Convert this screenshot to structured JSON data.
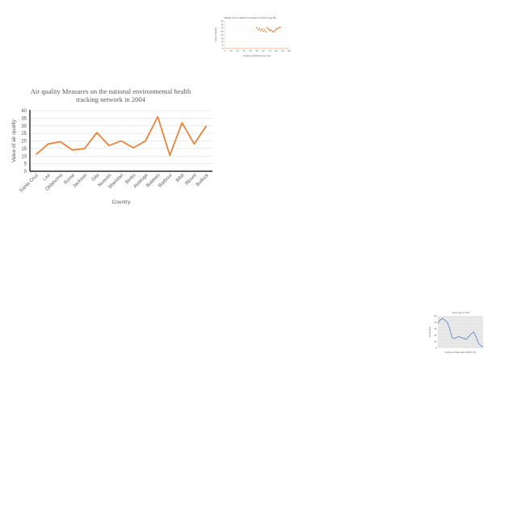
{
  "chart_data": [
    {
      "type": "line",
      "title": "Air quality Measures on the national environmental health tracking network in 2004",
      "title_lines": [
        "Air quality Measures on the national environmental health",
        "tracking network in 2004"
      ],
      "xlabel": "Country",
      "ylabel": "Value of air quality",
      "categories": [
        "Santa Cruz",
        "Lee",
        "Oklahoma",
        "Rome",
        "Jackson",
        "Gila",
        "Nueces",
        "Sheridan",
        "Berks",
        "Autauga",
        "Baldwin",
        "Barbour",
        "Bibb",
        "Blount",
        "Bullock"
      ],
      "values": [
        11,
        18,
        19.5,
        14,
        15,
        25.5,
        17,
        20,
        15.5,
        20,
        36,
        10.5,
        32,
        18,
        30
      ],
      "ylim": [
        0,
        40
      ],
      "yticks": [
        0,
        5,
        10,
        15,
        20,
        25,
        30,
        35,
        40
      ],
      "grid": true,
      "color": "#ED7D31"
    },
    {
      "type": "scatter",
      "title": "Weekly count of Deaths to Diseases in 2014 for age 85+",
      "xlabel": "Number of Deaths in the Year",
      "ylabel": "Count of deaths",
      "xlim": [
        0,
        100
      ],
      "ylim": [
        0,
        40
      ],
      "xticks": [
        0,
        10,
        20,
        30,
        40,
        50,
        60,
        70,
        80,
        90,
        100
      ],
      "yticks": [
        0,
        5,
        10,
        15,
        20,
        25,
        30,
        35,
        40
      ],
      "x": [
        50,
        52,
        54,
        56,
        58,
        60,
        62,
        64,
        66,
        68,
        70,
        72,
        74,
        76,
        78,
        80,
        82,
        84,
        86
      ],
      "y": [
        30,
        27,
        29,
        26,
        28,
        25,
        27,
        24,
        30,
        28,
        26,
        27,
        25,
        24,
        26,
        28,
        29,
        30,
        31
      ],
      "color": "#ED7D31"
    },
    {
      "type": "line",
      "title": "Stock price of TSS",
      "xlabel": "Number of Days after 2020-07-01",
      "ylabel": "Stock price",
      "ylim": [
        0,
        50
      ],
      "yticks": [
        0,
        5,
        10,
        15,
        20,
        25,
        30,
        35,
        40,
        45,
        50
      ],
      "values": [
        38,
        44,
        46,
        43,
        40,
        30,
        16,
        15,
        17,
        18,
        16,
        15,
        14,
        18,
        22,
        25,
        18,
        8,
        4,
        2
      ],
      "color": "#4472C4",
      "background": "#e5e5e5"
    }
  ]
}
